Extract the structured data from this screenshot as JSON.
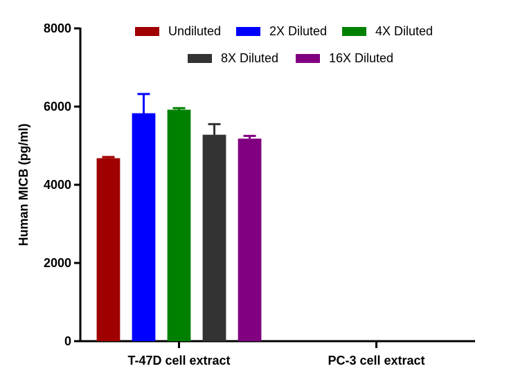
{
  "chart_data": {
    "type": "bar",
    "title": "",
    "xlabel": "",
    "ylabel": "Human MICB (pg/ml)",
    "ylim": [
      0,
      8000
    ],
    "yticks": [
      0,
      2000,
      4000,
      6000,
      8000
    ],
    "categories": [
      "T-47D cell extract",
      "PC-3 cell extract"
    ],
    "grid": false,
    "legend_position": "top",
    "series": [
      {
        "name": "Undiluted",
        "color": "#a00000",
        "values": [
          4680,
          0
        ],
        "errors": [
          30,
          0
        ]
      },
      {
        "name": "2X Diluted",
        "color": "#0000ff",
        "values": [
          5830,
          0
        ],
        "errors": [
          490,
          0
        ]
      },
      {
        "name": "4X Diluted",
        "color": "#008000",
        "values": [
          5920,
          0
        ],
        "errors": [
          40,
          0
        ]
      },
      {
        "name": "8X Diluted",
        "color": "#333333",
        "values": [
          5280,
          0
        ],
        "errors": [
          270,
          0
        ]
      },
      {
        "name": "16X Diluted",
        "color": "#800080",
        "values": [
          5180,
          0
        ],
        "errors": [
          70,
          0
        ]
      }
    ]
  }
}
